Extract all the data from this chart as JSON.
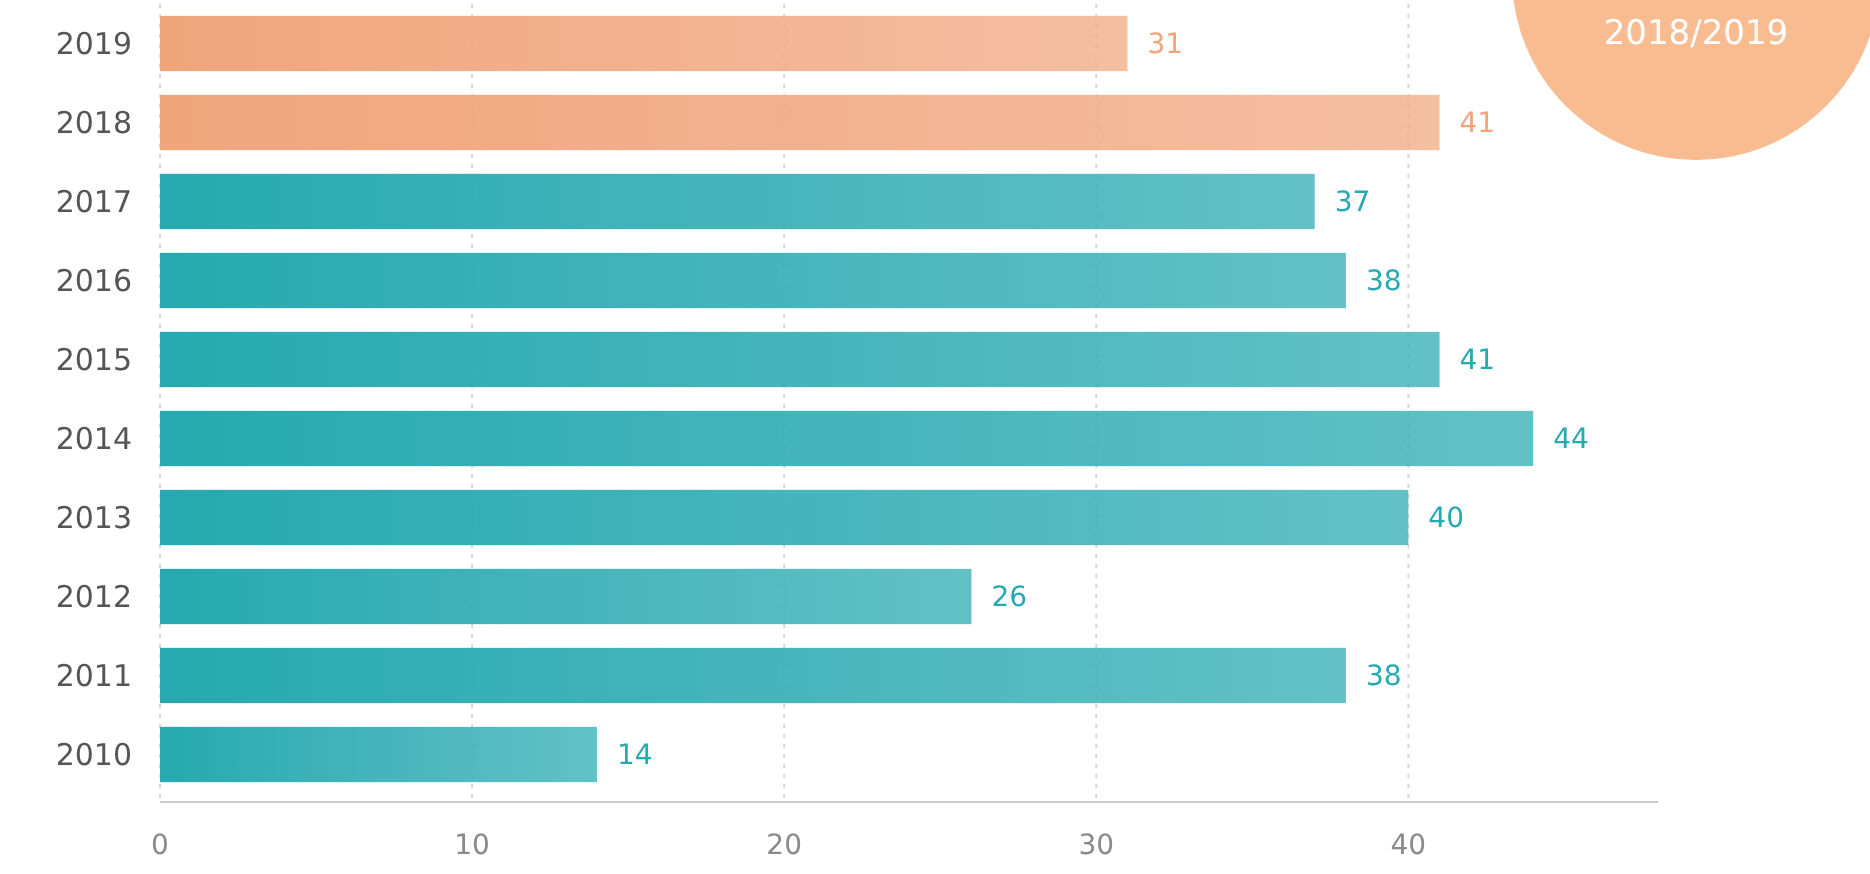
{
  "chart_data": {
    "type": "bar",
    "orientation": "horizontal",
    "categories": [
      "2019",
      "2018",
      "2017",
      "2016",
      "2015",
      "2014",
      "2013",
      "2012",
      "2011",
      "2010"
    ],
    "values": [
      31,
      41,
      37,
      38,
      41,
      44,
      40,
      26,
      38,
      14
    ],
    "colors": [
      "#f0a57c",
      "#f0a57c",
      "#26a9b0",
      "#26a9b0",
      "#26a9b0",
      "#26a9b0",
      "#26a9b0",
      "#26a9b0",
      "#26a9b0",
      "#26a9b0"
    ],
    "xlim": [
      0,
      48
    ],
    "xticks": [
      0,
      10,
      20,
      30,
      40
    ],
    "grid": "x",
    "data_labels": true,
    "annotations": [
      "2018/2019"
    ]
  }
}
